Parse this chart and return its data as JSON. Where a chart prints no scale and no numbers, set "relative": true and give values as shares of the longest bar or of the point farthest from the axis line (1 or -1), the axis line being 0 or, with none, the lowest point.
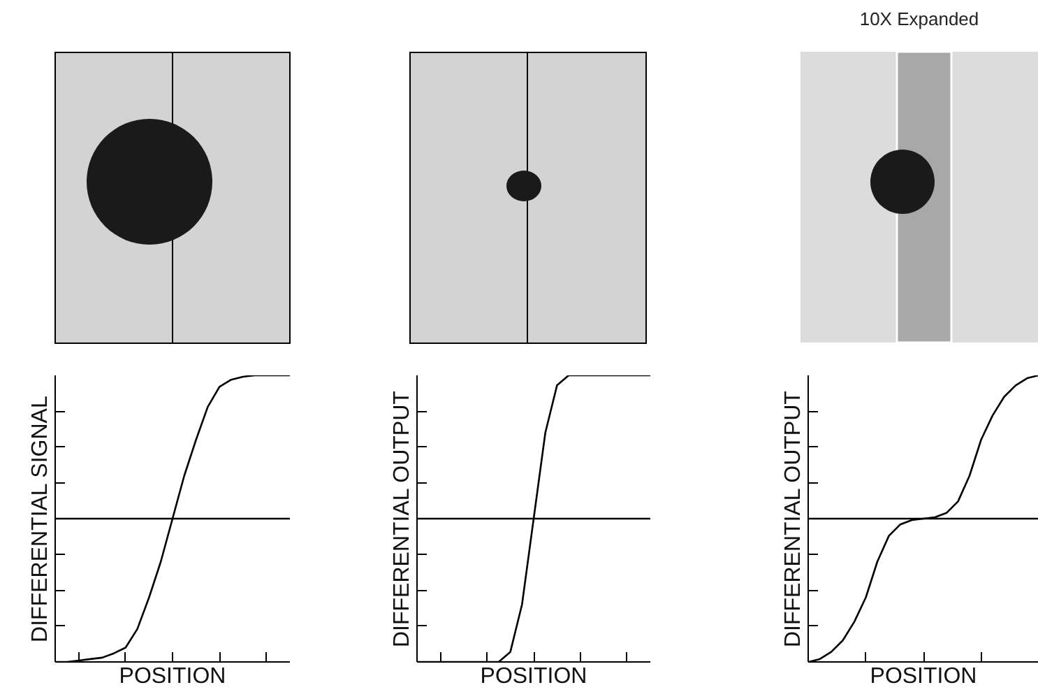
{
  "chart_data": [
    {
      "type": "line",
      "relative": true,
      "ylabel": "DIFFERENTIAL SIGNAL",
      "xlabel": "POSITION",
      "grid": false,
      "categories": [
        null,
        null,
        null,
        null,
        null,
        null,
        null,
        null,
        null,
        null,
        null,
        null,
        null,
        null,
        null,
        null,
        null,
        null,
        null,
        null,
        null
      ],
      "series": [
        {
          "color": "#000000",
          "values": [
            -1,
            -1,
            -0.99,
            -0.98,
            -0.97,
            -0.94,
            -0.9,
            -0.77,
            -0.55,
            -0.3,
            0,
            0.3,
            0.55,
            0.78,
            0.92,
            0.97,
            0.99,
            1,
            1,
            1,
            1
          ]
        }
      ]
    },
    {
      "type": "line",
      "relative": true,
      "ylabel": "DIFFERENTIAL OUTPUT",
      "xlabel": "POSITION",
      "grid": false,
      "categories": [
        null,
        null,
        null,
        null,
        null,
        null,
        null,
        null,
        null,
        null,
        null,
        null,
        null,
        null,
        null,
        null,
        null,
        null,
        null,
        null,
        null
      ],
      "series": [
        {
          "color": "#000000",
          "values": [
            -1,
            -1,
            -1,
            -1,
            -1,
            -1,
            -1,
            -1,
            -0.93,
            -0.6,
            0,
            0.6,
            0.93,
            1,
            1,
            1,
            1,
            1,
            1,
            1,
            1
          ]
        }
      ]
    },
    {
      "type": "line",
      "relative": true,
      "title": "10X Expanded",
      "ylabel": "DIFFERENTIAL OUTPUT",
      "xlabel": "POSITION",
      "grid": false,
      "categories": [
        null,
        null,
        null,
        null,
        null,
        null,
        null,
        null,
        null,
        null,
        null,
        null,
        null,
        null,
        null,
        null,
        null,
        null,
        null,
        null,
        null
      ],
      "series": [
        {
          "color": "#000000",
          "values": [
            -1,
            -0.98,
            -0.93,
            -0.85,
            -0.72,
            -0.55,
            -0.3,
            -0.12,
            -0.04,
            -0.01,
            0,
            0.01,
            0.04,
            0.12,
            0.3,
            0.55,
            0.72,
            0.85,
            0.93,
            0.98,
            1
          ]
        }
      ]
    }
  ]
}
